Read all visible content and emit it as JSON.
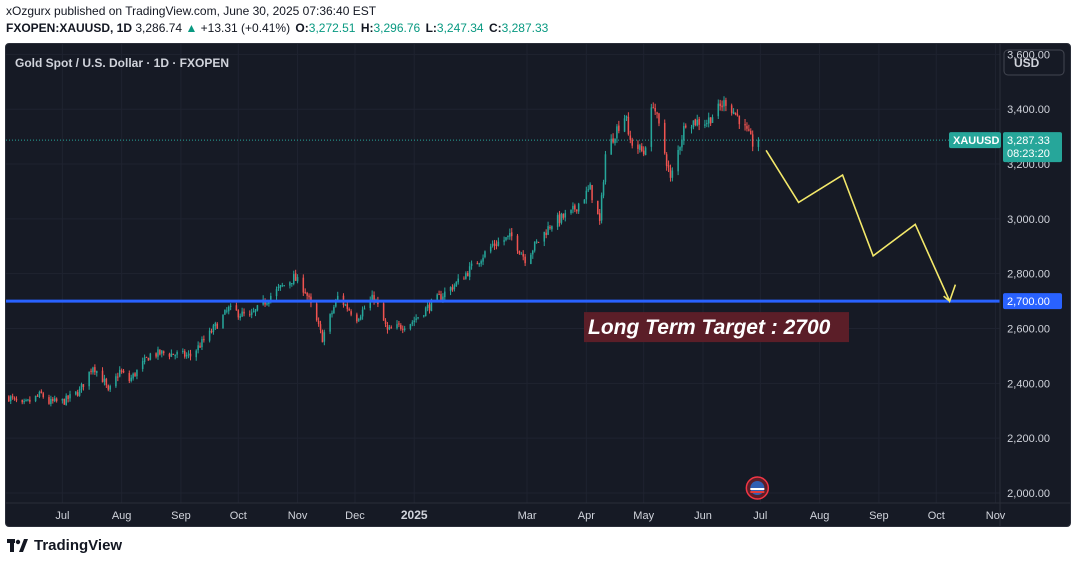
{
  "header": {
    "user": "xOzgurx",
    "published": "published on TradingView.com, June 30, 2025 07:36:40 EST",
    "symbol": "FXOPEN:XAUUSD, 1D",
    "last": "3,286.74",
    "change": "+13.31 (+0.41%)",
    "o_label": "O:",
    "o": "3,272.51",
    "h_label": "H:",
    "h": "3,296.76",
    "l_label": "L:",
    "l": "3,247.34",
    "c_label": "C:",
    "c": "3,287.33"
  },
  "chart": {
    "title": "Gold Spot / U.S. Dollar · 1D · FXOPEN",
    "currency_button": "USD",
    "price_tag_symbol": "XAUUSD",
    "price_tag_value": "3,287.33",
    "price_tag_countdown": "08:23:20",
    "level_tag": "2,700.00",
    "annotation": "Long Term Target : 2700",
    "colors": {
      "background": "#161a25",
      "up": "#26a69a",
      "down": "#ef5350",
      "level": "#2962ff",
      "projection": "#f3e86a",
      "annotation_bg": "#5b1e28"
    }
  },
  "footer": {
    "brand": "TradingView"
  },
  "chart_data": {
    "type": "candlestick",
    "title": "Gold Spot / U.S. Dollar · 1D · FXOPEN",
    "xlabel": "",
    "ylabel": "",
    "ylim": [
      1905,
      3700
    ],
    "y_ticks": [
      2000,
      2200,
      2400,
      2600,
      2800,
      3000,
      3200,
      3400,
      3600
    ],
    "y_tick_labels": [
      "2,000.00",
      "2,200.00",
      "2,400.00",
      "2,600.00",
      "2,800.00",
      "3,000.00",
      "3,200.00",
      "3,400.00",
      "3,600.00"
    ],
    "x_range": [
      "2024-06-01",
      "2025-11-30"
    ],
    "x_ticks": [
      "2024-07-01",
      "2024-08-01",
      "2024-09-01",
      "2024-10-01",
      "2024-11-01",
      "2024-12-01",
      "2025-01-01",
      "2025-03-01",
      "2025-04-01",
      "2025-05-01",
      "2025-06-01",
      "2025-07-01",
      "2025-08-01",
      "2025-09-01",
      "2025-10-01",
      "2025-11-01"
    ],
    "x_tick_labels": [
      "Jul",
      "Aug",
      "Sep",
      "Oct",
      "Nov",
      "Dec",
      "2025",
      "Mar",
      "Apr",
      "May",
      "Jun",
      "Jul",
      "Aug",
      "Sep",
      "Oct",
      "Nov"
    ],
    "x_tick_bold": [
      false,
      false,
      false,
      false,
      false,
      false,
      true,
      false,
      false,
      false,
      false,
      false,
      false,
      false,
      false,
      false
    ],
    "close_anchors": [
      [
        "2024-06-03",
        2350
      ],
      [
        "2024-06-10",
        2318
      ],
      [
        "2024-06-14",
        2335
      ],
      [
        "2024-06-20",
        2360
      ],
      [
        "2024-06-24",
        2330
      ],
      [
        "2024-07-02",
        2335
      ],
      [
        "2024-07-10",
        2372
      ],
      [
        "2024-07-17",
        2465
      ],
      [
        "2024-07-23",
        2405
      ],
      [
        "2024-07-25",
        2365
      ],
      [
        "2024-07-31",
        2445
      ],
      [
        "2024-08-05",
        2410
      ],
      [
        "2024-08-16",
        2505
      ],
      [
        "2024-08-23",
        2510
      ],
      [
        "2024-09-06",
        2500
      ],
      [
        "2024-09-16",
        2580
      ],
      [
        "2024-09-26",
        2670
      ],
      [
        "2024-10-07",
        2640
      ],
      [
        "2024-10-18",
        2720
      ],
      [
        "2024-10-30",
        2785
      ],
      [
        "2024-11-05",
        2740
      ],
      [
        "2024-11-14",
        2565
      ],
      [
        "2024-11-22",
        2715
      ],
      [
        "2024-12-02",
        2640
      ],
      [
        "2024-12-11",
        2715
      ],
      [
        "2024-12-18",
        2590
      ],
      [
        "2024-12-31",
        2625
      ],
      [
        "2025-01-10",
        2690
      ],
      [
        "2025-01-24",
        2770
      ],
      [
        "2025-02-11",
        2905
      ],
      [
        "2025-02-21",
        2935
      ],
      [
        "2025-02-28",
        2855
      ],
      [
        "2025-03-14",
        2985
      ],
      [
        "2025-03-24",
        3020
      ],
      [
        "2025-04-03",
        3110
      ],
      [
        "2025-04-08",
        2985
      ],
      [
        "2025-04-11",
        3235
      ],
      [
        "2025-04-17",
        3330
      ],
      [
        "2025-04-22",
        3385
      ],
      [
        "2025-04-23",
        3290
      ],
      [
        "2025-05-01",
        3240
      ],
      [
        "2025-05-06",
        3425
      ],
      [
        "2025-05-14",
        3180
      ],
      [
        "2025-05-15",
        3140
      ],
      [
        "2025-05-23",
        3355
      ],
      [
        "2025-06-03",
        3355
      ],
      [
        "2025-06-13",
        3430
      ],
      [
        "2025-06-20",
        3365
      ],
      [
        "2025-06-27",
        3275
      ],
      [
        "2025-06-30",
        3287.33
      ]
    ],
    "last_close": 3287.33,
    "horizontal_level": 2700,
    "projection_path": [
      [
        "2025-07-04",
        3250
      ],
      [
        "2025-07-21",
        3060
      ],
      [
        "2025-08-13",
        3160
      ],
      [
        "2025-08-29",
        2865
      ],
      [
        "2025-09-20",
        2980
      ],
      [
        "2025-10-08",
        2700
      ],
      [
        "2025-10-11",
        2760
      ]
    ],
    "annotations": [
      "Long Term Target : 2700"
    ]
  }
}
